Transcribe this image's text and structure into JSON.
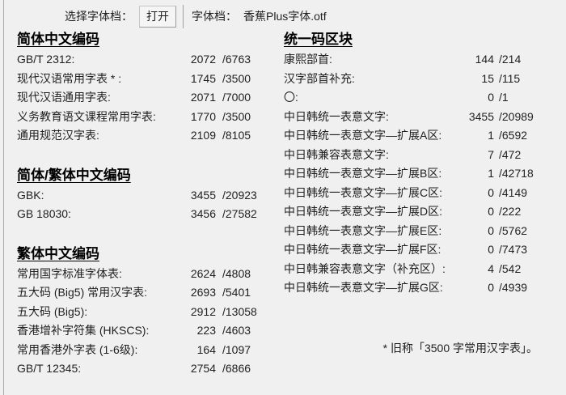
{
  "toolbar": {
    "select_label": "选择字体档：",
    "open_button": "打开",
    "file_label": "字体档：",
    "file_name": "香蕉Plus字体.otf"
  },
  "columns": {
    "left": {
      "sections": [
        {
          "title": "简体中文编码",
          "rows": [
            {
              "label": "GB/T 2312:",
              "count": "2072",
              "total": "/6763"
            },
            {
              "label": "现代汉语常用字表 * :",
              "count": "1745",
              "total": "/3500"
            },
            {
              "label": "现代汉语通用字表:",
              "count": "2071",
              "total": "/7000"
            },
            {
              "label": "义务教育语文课程常用字表:",
              "count": "1770",
              "total": "/3500"
            },
            {
              "label": "通用规范汉字表:",
              "count": "2109",
              "total": "/8105"
            }
          ]
        },
        {
          "title": "简体/繁体中文编码",
          "rows": [
            {
              "label": "GBK:",
              "count": "3455",
              "total": "/20923"
            },
            {
              "label": "GB 18030:",
              "count": "3456",
              "total": "/27582"
            }
          ]
        },
        {
          "title": "繁体中文编码",
          "rows": [
            {
              "label": "常用国字标准字体表:",
              "count": "2624",
              "total": "/4808"
            },
            {
              "label": "五大码 (Big5) 常用汉字表:",
              "count": "2693",
              "total": "/5401"
            },
            {
              "label": "五大码 (Big5):",
              "count": "2912",
              "total": "/13058"
            },
            {
              "label": "香港增补字符集 (HKSCS):",
              "count": "223",
              "total": "/4603"
            },
            {
              "label": "常用香港外字表 (1-6级):",
              "count": "164",
              "total": "/1097"
            },
            {
              "label": "GB/T 12345:",
              "count": "2754",
              "total": "/6866"
            }
          ]
        }
      ]
    },
    "right": {
      "sections": [
        {
          "title": "统一码区块",
          "rows": [
            {
              "label": "康熙部首:",
              "count": "144",
              "total": "/214"
            },
            {
              "label": "汉字部首补充:",
              "count": "15",
              "total": "/115"
            },
            {
              "label": "〇:",
              "count": "0",
              "total": "/1"
            },
            {
              "label": "中日韩统一表意文字:",
              "count": "3455",
              "total": "/20989"
            },
            {
              "label": "中日韩统一表意文字—扩展A区:",
              "count": "1",
              "total": "/6592"
            },
            {
              "label": "中日韩兼容表意文字:",
              "count": "7",
              "total": "/472"
            },
            {
              "label": "中日韩统一表意文字—扩展B区:",
              "count": "1",
              "total": "/42718"
            },
            {
              "label": "中日韩统一表意文字—扩展C区:",
              "count": "0",
              "total": "/4149"
            },
            {
              "label": "中日韩统一表意文字—扩展D区:",
              "count": "0",
              "total": "/222"
            },
            {
              "label": "中日韩统一表意文字—扩展E区:",
              "count": "0",
              "total": "/5762"
            },
            {
              "label": "中日韩统一表意文字—扩展F区:",
              "count": "0",
              "total": "/7473"
            },
            {
              "label": "中日韩兼容表意文字（补充区）:",
              "count": "4",
              "total": "/542"
            },
            {
              "label": "中日韩统一表意文字—扩展G区:",
              "count": "0",
              "total": "/4939"
            }
          ]
        }
      ],
      "footnote": "* 旧称「3500 字常用汉字表」。"
    }
  },
  "colors": {
    "background": "#f0f0f0",
    "text": "#1f1f1f",
    "heading": "#000000",
    "border": "#9e9e9e"
  }
}
